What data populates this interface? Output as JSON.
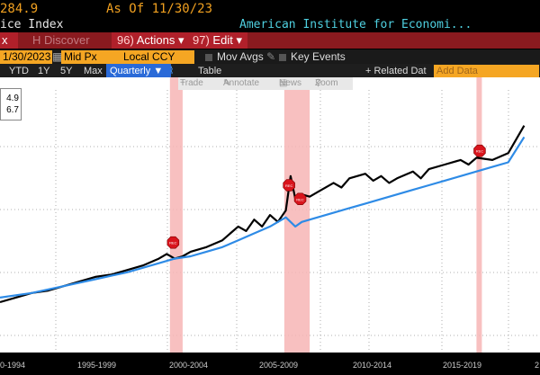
{
  "header": {
    "price": "284.9",
    "as_of": "As Of 11/30/23",
    "title": "ice Index",
    "source": "American Institute for Economi..."
  },
  "menu": {
    "left_chip": "x",
    "discover": "Discover",
    "actions": "Actions",
    "actions_key": "96)",
    "edit": "Edit",
    "edit_key": "97)"
  },
  "controls": {
    "date": "1/30/2023",
    "price_field": "Mid Px",
    "currency": "Local CCY",
    "mov_avgs": "Mov Avgs",
    "key_events": "Key Events"
  },
  "ranges": {
    "ytd": "YTD",
    "y1": "1Y",
    "y5": "5Y",
    "max": "Max",
    "period": "Quarterly",
    "table": "Table",
    "related": "+ Related Dat",
    "add_data": "Add Data"
  },
  "tools": {
    "trade": "Trade",
    "annotate": "Annotate",
    "news": "News",
    "zoom": "Zoom"
  },
  "legend": {
    "v1": "4.9",
    "v2": "6.7"
  },
  "chart_data": {
    "type": "line",
    "x_ticks": [
      "0-1994",
      "1995-1999",
      "2000-2004",
      "2005-2009",
      "2010-2014",
      "2015-2019",
      "2"
    ],
    "x_range": [
      1990,
      2024
    ],
    "series": [
      {
        "color": "#000000",
        "x": [
          1990,
          1991,
          1992,
          1993,
          1994,
          1995,
          1996,
          1997,
          1998,
          1999,
          2000,
          2000.5,
          2001,
          2001.5,
          2002,
          2003,
          2004,
          2004.5,
          2005,
          2005.5,
          2006,
          2006.5,
          2007,
          2007.5,
          2008,
          2008.3,
          2008.6,
          2009,
          2009.5,
          2010,
          2011,
          2011.5,
          2012,
          2013,
          2013.5,
          2014,
          2014.5,
          2015,
          2016,
          2016.5,
          2017,
          2018,
          2019,
          2019.5,
          2020,
          2021,
          2022,
          2023
        ],
        "y": [
          0,
          2,
          4,
          5,
          7,
          9,
          11,
          12,
          14,
          16,
          19,
          21,
          19,
          20,
          22,
          24,
          27,
          30,
          33,
          31,
          36,
          33,
          38,
          35,
          40,
          55,
          45,
          47,
          46,
          48,
          52,
          50,
          54,
          56,
          53,
          55,
          52,
          54,
          57,
          54,
          58,
          60,
          62,
          60,
          63,
          62,
          65,
          77
        ]
      },
      {
        "color": "#2e8be6",
        "x": [
          1990,
          1992,
          1994,
          1996,
          1998,
          2000,
          2001,
          2002,
          2003,
          2004,
          2005,
          2006,
          2007,
          2008,
          2008.6,
          2009,
          2010,
          2011,
          2012,
          2013,
          2014,
          2015,
          2016,
          2017,
          2018,
          2019,
          2020,
          2021,
          2022,
          2023
        ],
        "y": [
          2,
          4,
          7,
          10,
          13,
          17,
          19,
          20,
          22,
          24,
          27,
          30,
          33,
          37,
          33,
          35,
          37,
          39,
          41,
          43,
          45,
          47,
          49,
          51,
          53,
          55,
          57,
          59,
          61,
          72
        ]
      }
    ],
    "recessions": [
      [
        2000.7,
        2001.5
      ],
      [
        2007.9,
        2009.5
      ],
      [
        2020.0,
        2020.3
      ]
    ],
    "event_markers": [
      {
        "x": 2000.9,
        "y": 26,
        "label": "REC"
      },
      {
        "x": 2008.2,
        "y": 51,
        "label": "REC"
      },
      {
        "x": 2008.9,
        "y": 45,
        "label": "REC"
      },
      {
        "x": 2020.2,
        "y": 66,
        "label": "REC"
      }
    ]
  }
}
